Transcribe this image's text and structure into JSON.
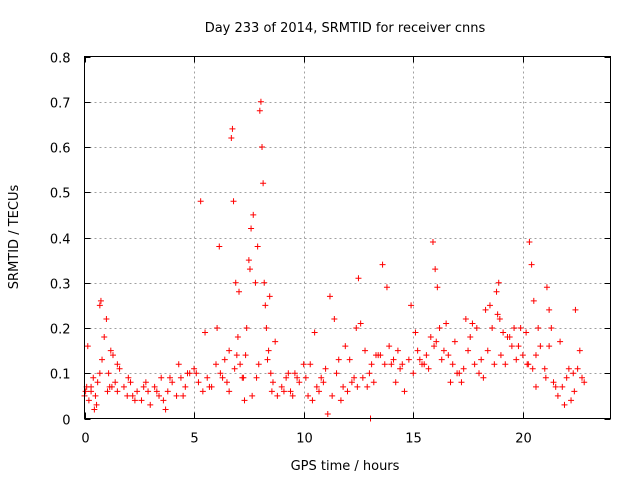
{
  "chart_data": {
    "type": "scatter",
    "title": "Day 233 of 2014, SRMTID for receiver cnns",
    "xlabel": "GPS time / hours",
    "ylabel": "SRMTID / TECUs",
    "xlim": [
      0,
      24
    ],
    "ylim": [
      0,
      0.8
    ],
    "grid": true,
    "x_ticks": [
      0,
      5,
      10,
      15,
      20
    ],
    "x_tick_labels": [
      "0",
      "5",
      "10",
      "15",
      "20"
    ],
    "y_ticks": [
      0,
      0.1,
      0.2,
      0.3,
      0.4,
      0.5,
      0.6,
      0.7,
      0.8
    ],
    "y_tick_labels": [
      "0",
      "0.1",
      "0.2",
      "0.3",
      "0.4",
      "0.5",
      "0.6",
      "0.7",
      "0.8"
    ],
    "marker": "plus",
    "color": "#ff0000",
    "series": [
      {
        "name": "SRMTID",
        "x": [
          0.0,
          0.1,
          0.2,
          0.3,
          0.4,
          0.5,
          0.6,
          0.7,
          0.75,
          0.8,
          0.9,
          1.0,
          1.1,
          1.2,
          1.3,
          1.4,
          1.5,
          1.6,
          1.8,
          2.0,
          2.2,
          2.4,
          2.6,
          2.8,
          3.0,
          3.2,
          3.4,
          3.6,
          3.8,
          4.0,
          4.2,
          4.4,
          4.6,
          4.8,
          5.0,
          5.2,
          5.4,
          5.6,
          5.8,
          6.0,
          6.2,
          6.4,
          6.5,
          6.6,
          6.7,
          6.75,
          6.8,
          6.9,
          7.0,
          7.1,
          7.2,
          7.3,
          7.4,
          7.5,
          7.6,
          7.7,
          7.8,
          7.9,
          8.0,
          8.05,
          8.1,
          8.15,
          8.2,
          8.3,
          8.4,
          8.5,
          8.6,
          8.8,
          9.0,
          9.2,
          9.4,
          9.6,
          9.8,
          10.0,
          10.2,
          10.4,
          10.6,
          10.8,
          11.0,
          11.2,
          11.4,
          11.6,
          11.8,
          12.0,
          12.2,
          12.4,
          12.5,
          12.6,
          12.8,
          13.0,
          13.2,
          13.4,
          13.6,
          13.8,
          14.0,
          14.2,
          14.4,
          14.6,
          14.8,
          15.0,
          15.2,
          15.4,
          15.6,
          15.8,
          15.9,
          16.0,
          16.1,
          16.2,
          16.4,
          16.6,
          16.8,
          17.0,
          17.2,
          17.4,
          17.6,
          17.8,
          18.0,
          18.2,
          18.4,
          18.6,
          18.8,
          18.9,
          19.0,
          19.2,
          19.4,
          19.6,
          19.8,
          20.0,
          20.2,
          20.3,
          20.4,
          20.5,
          20.6,
          20.8,
          21.0,
          21.1,
          21.2,
          21.4,
          21.6,
          21.8,
          22.0,
          22.2,
          22.3,
          22.4,
          22.6,
          22.8,
          0.05,
          0.3,
          0.7,
          1.05,
          1.5,
          2.1,
          2.7,
          3.3,
          3.9,
          4.5,
          5.1,
          5.7,
          6.3,
          6.85,
          7.05,
          7.35,
          7.55,
          7.85,
          8.25,
          8.45,
          9.1,
          9.7,
          10.3,
          10.9,
          11.5,
          12.1,
          12.7,
          13.3,
          13.9,
          14.5,
          15.1,
          15.7,
          16.3,
          16.9,
          17.5,
          18.1,
          18.7,
          19.3,
          19.9,
          20.45,
          21.05,
          21.5,
          22.1,
          22.7,
          0.15,
          0.55,
          1.25,
          2.3,
          3.5,
          4.3,
          5.3,
          6.05,
          6.95,
          7.65,
          8.35,
          8.7,
          9.5,
          10.5,
          11.1,
          11.7,
          12.3,
          12.9,
          13.1,
          13.5,
          14.1,
          14.9,
          15.5,
          15.95,
          16.5,
          17.3,
          17.9,
          18.5,
          18.95,
          19.5,
          20.15,
          20.6,
          21.3,
          21.9,
          22.5,
          0.45,
          1.15,
          1.95,
          2.9,
          3.7,
          4.7,
          5.5,
          6.15,
          6.6,
          7.25,
          7.95,
          8.55,
          9.3,
          10.1,
          10.7,
          11.3,
          11.9,
          12.45,
          13.05,
          13.7,
          14.3,
          15.3,
          16.05,
          16.7,
          17.1,
          17.7,
          18.3,
          18.85,
          19.1,
          19.7,
          20.25,
          20.7,
          21.2,
          21.7,
          22.35
        ],
        "y": [
          0.05,
          0.07,
          0.04,
          0.06,
          0.09,
          0.05,
          0.08,
          0.25,
          0.26,
          0.13,
          0.18,
          0.22,
          0.1,
          0.15,
          0.14,
          0.08,
          0.06,
          0.11,
          0.07,
          0.09,
          0.05,
          0.06,
          0.04,
          0.08,
          0.03,
          0.07,
          0.05,
          0.04,
          0.06,
          0.08,
          0.05,
          0.09,
          0.07,
          0.1,
          0.11,
          0.08,
          0.06,
          0.09,
          0.07,
          0.12,
          0.1,
          0.13,
          0.08,
          0.06,
          0.62,
          0.64,
          0.48,
          0.3,
          0.18,
          0.12,
          0.09,
          0.04,
          0.2,
          0.35,
          0.42,
          0.45,
          0.3,
          0.38,
          0.68,
          0.7,
          0.6,
          0.52,
          0.3,
          0.2,
          0.15,
          0.1,
          0.08,
          0.05,
          0.07,
          0.09,
          0.06,
          0.1,
          0.08,
          0.12,
          0.05,
          0.04,
          0.07,
          0.09,
          0.11,
          0.27,
          0.22,
          0.13,
          0.07,
          0.06,
          0.08,
          0.2,
          0.31,
          0.21,
          0.15,
          0.1,
          0.08,
          0.14,
          0.34,
          0.29,
          0.12,
          0.08,
          0.11,
          0.06,
          0.13,
          0.1,
          0.15,
          0.12,
          0.14,
          0.18,
          0.39,
          0.33,
          0.29,
          0.2,
          0.15,
          0.14,
          0.12,
          0.1,
          0.08,
          0.22,
          0.18,
          0.12,
          0.1,
          0.09,
          0.15,
          0.2,
          0.28,
          0.3,
          0.14,
          0.12,
          0.18,
          0.2,
          0.16,
          0.14,
          0.12,
          0.39,
          0.34,
          0.26,
          0.14,
          0.16,
          0.11,
          0.29,
          0.24,
          0.08,
          0.05,
          0.07,
          0.09,
          0.04,
          0.1,
          0.24,
          0.15,
          0.08,
          0.06,
          0.07,
          0.1,
          0.06,
          0.12,
          0.08,
          0.07,
          0.06,
          0.09,
          0.05,
          0.1,
          0.07,
          0.09,
          0.11,
          0.28,
          0.14,
          0.33,
          0.09,
          0.25,
          0.27,
          0.06,
          0.09,
          0.12,
          0.08,
          0.1,
          0.13,
          0.09,
          0.14,
          0.16,
          0.12,
          0.19,
          0.11,
          0.13,
          0.17,
          0.15,
          0.13,
          0.12,
          0.18,
          0.2,
          0.11,
          0.09,
          0.07,
          0.11,
          0.09,
          0.16,
          0.03,
          0.07,
          0.04,
          0.09,
          0.12,
          0.48,
          0.2,
          0.14,
          0.05,
          0.13,
          0.17,
          0.05,
          0.19,
          0.01,
          0.04,
          0.09,
          0.07,
          0.12,
          0.14,
          0.13,
          0.25,
          0.12,
          0.16,
          0.21,
          0.11,
          0.2,
          0.25,
          0.22,
          0.16,
          0.19,
          0.07,
          0.2,
          0.03,
          0.11,
          0.02,
          0.07,
          0.05,
          0.06,
          0.02,
          0.1,
          0.19,
          0.38,
          0.15,
          0.09,
          0.12,
          0.06,
          0.1,
          0.09,
          0.06,
          0.05,
          0.16,
          0.07,
          0.0,
          0.12,
          0.15,
          0.13,
          0.17,
          0.08,
          0.1,
          0.21,
          0.24,
          0.23,
          0.19,
          0.13,
          0.12,
          0.2,
          0.16,
          0.17,
          0.06
        ]
      }
    ]
  }
}
